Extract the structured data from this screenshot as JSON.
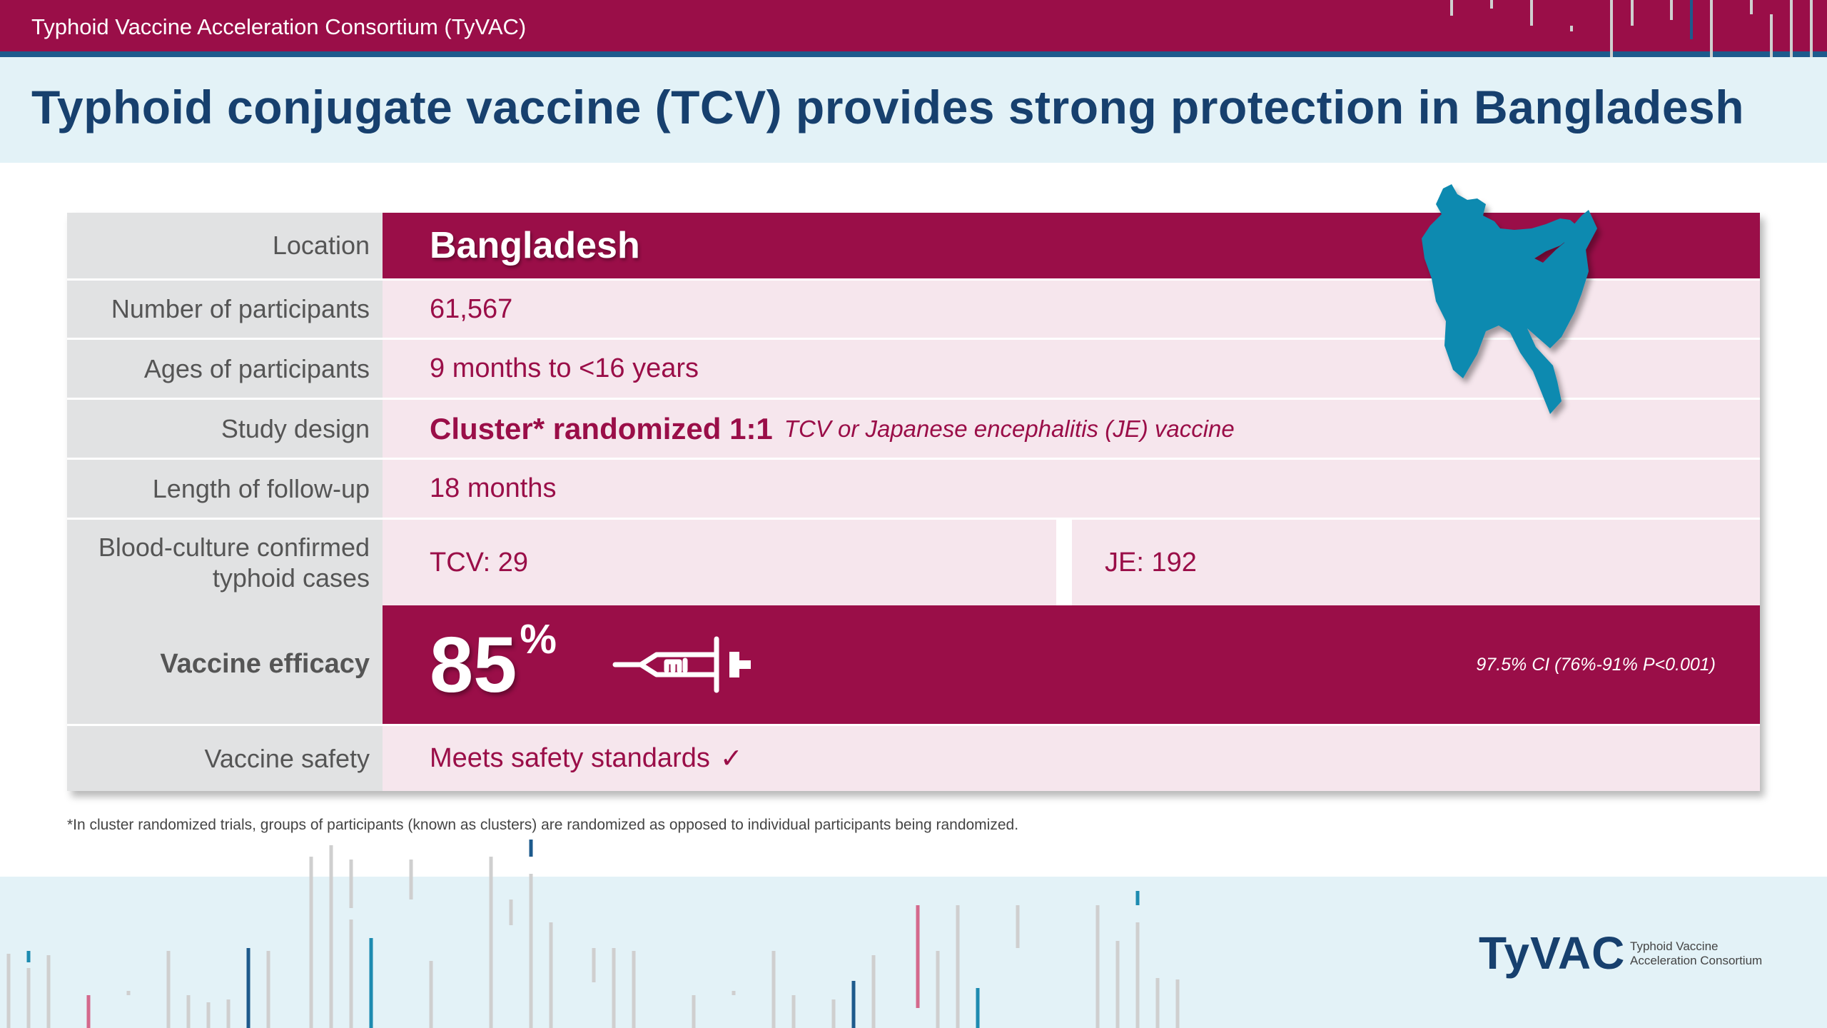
{
  "header": {
    "consortium": "Typhoid Vaccine Acceleration Consortium (TyVAC)",
    "title": "Typhoid conjugate vaccine (TCV) provides strong protection in Bangladesh"
  },
  "table": {
    "location": {
      "label": "Location",
      "value": "Bangladesh"
    },
    "participants": {
      "label": "Number of participants",
      "value": "61,567"
    },
    "ages": {
      "label": "Ages of participants",
      "value": "9 months to <16 years"
    },
    "design": {
      "label": "Study design",
      "value_bold": "Cluster* randomized 1:1",
      "value_italic": "TCV or Japanese encephalitis (JE) vaccine"
    },
    "followup": {
      "label": "Length of follow-up",
      "value": "18 months"
    },
    "cases": {
      "label_line1": "Blood-culture confirmed",
      "label_line2": "typhoid cases",
      "tcv": "TCV: 29",
      "je": "JE: 192"
    },
    "efficacy": {
      "label": "Vaccine efficacy",
      "number": "85",
      "unit": "%",
      "ci": "97.5% CI (76%-91% P<0.001)"
    },
    "safety": {
      "label": "Vaccine safety",
      "value": "Meets safety standards",
      "check": "✓"
    }
  },
  "footnote": "*In cluster randomized trials, groups of participants (known as clusters) are randomized as opposed to individual participants being randomized.",
  "logo": {
    "name": "TyVAC",
    "sub_line1": "Typhoid Vaccine",
    "sub_line2": "Acceleration Consortium"
  },
  "icons": {
    "map": "bangladesh-map-icon",
    "syringe": "syringe-icon"
  },
  "colors": {
    "brand": "#9a0e48",
    "navy": "#17406e",
    "map": "#0f8ab0",
    "light_band": "#e3f2f7",
    "row_fill": "#f6e6ed",
    "label_fill": "#e1e2e3"
  }
}
